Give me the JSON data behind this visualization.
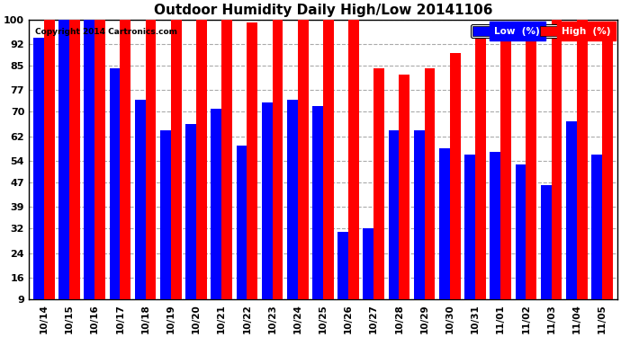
{
  "title": "Outdoor Humidity Daily High/Low 20141106",
  "copyright": "Copyright 2014 Cartronics.com",
  "legend_low_label": "Low  (%)",
  "legend_high_label": "High  (%)",
  "low_color": "#0000FF",
  "high_color": "#FF0000",
  "background_color": "#FFFFFF",
  "grid_color": "#AAAAAA",
  "ylim": [
    9,
    100
  ],
  "yticks": [
    9,
    16,
    24,
    32,
    39,
    47,
    54,
    62,
    70,
    77,
    85,
    92,
    100
  ],
  "dates": [
    "10/14",
    "10/15",
    "10/16",
    "10/17",
    "10/18",
    "10/19",
    "10/20",
    "10/21",
    "10/22",
    "10/23",
    "10/24",
    "10/25",
    "10/26",
    "10/27",
    "10/28",
    "10/29",
    "10/30",
    "10/31",
    "11/01",
    "11/02",
    "11/03",
    "11/04",
    "11/05"
  ],
  "high_values": [
    100,
    100,
    100,
    100,
    100,
    100,
    95,
    100,
    90,
    100,
    95,
    100,
    95,
    75,
    73,
    75,
    80,
    88,
    88,
    90,
    92,
    100,
    88
  ],
  "low_values": [
    85,
    95,
    92,
    75,
    65,
    55,
    57,
    62,
    50,
    64,
    65,
    63,
    22,
    23,
    55,
    55,
    49,
    47,
    48,
    44,
    37,
    58,
    47
  ]
}
